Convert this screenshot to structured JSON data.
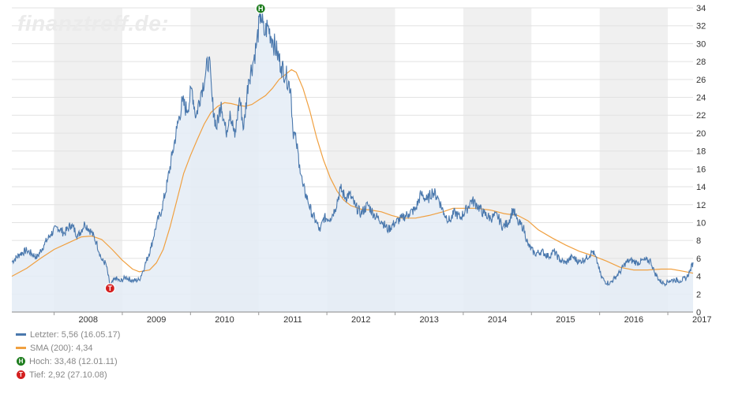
{
  "watermark": "finanztreff.de:",
  "colors": {
    "price": "#4a78ad",
    "sma": "#f0a040",
    "high": "#1e7d1e",
    "low": "#d42020",
    "band": "#f0f0f0",
    "fill": "#e4ecf6"
  },
  "legend": {
    "last": "Letzter: 5,56 (16.05.17)",
    "sma": "SMA (200): 4,34",
    "high": "Hoch: 33,48 (12.01.11)",
    "low": "Tief: 2,92 (27.10.08)"
  },
  "chart_data": {
    "type": "line",
    "x_range": [
      2007.38,
      2017.37
    ],
    "ylim": [
      0,
      34
    ],
    "y_ticks": [
      0,
      2,
      4,
      6,
      8,
      10,
      12,
      14,
      16,
      18,
      20,
      22,
      24,
      26,
      28,
      30,
      32,
      34
    ],
    "x_ticks": [
      "2008",
      "2009",
      "2010",
      "2011",
      "2012",
      "2013",
      "2014",
      "2015",
      "2016",
      "2017"
    ],
    "grid": true,
    "legend_position": "bottom-left",
    "markers": [
      {
        "label": "H",
        "x": 2011.03,
        "y": 33.48
      },
      {
        "label": "T",
        "x": 2008.82,
        "y": 2.92
      }
    ],
    "series": [
      {
        "values": [
          [
            2007.38,
            5.6
          ],
          [
            2007.5,
            6.5
          ],
          [
            2007.6,
            6.9
          ],
          [
            2007.75,
            6.1
          ],
          [
            2007.85,
            7.5
          ],
          [
            2007.95,
            8.7
          ],
          [
            2008.05,
            9.5
          ],
          [
            2008.15,
            8.8
          ],
          [
            2008.25,
            9.8
          ],
          [
            2008.35,
            8.5
          ],
          [
            2008.45,
            9.9
          ],
          [
            2008.55,
            8.9
          ],
          [
            2008.62,
            7.8
          ],
          [
            2008.7,
            5.8
          ],
          [
            2008.76,
            5.4
          ],
          [
            2008.82,
            2.92
          ],
          [
            2008.9,
            3.8
          ],
          [
            2008.97,
            3.4
          ],
          [
            2009.05,
            3.9
          ],
          [
            2009.15,
            3.5
          ],
          [
            2009.25,
            3.6
          ],
          [
            2009.33,
            5.2
          ],
          [
            2009.42,
            7.2
          ],
          [
            2009.5,
            9.8
          ],
          [
            2009.58,
            11.5
          ],
          [
            2009.66,
            14.5
          ],
          [
            2009.73,
            17.5
          ],
          [
            2009.8,
            20.5
          ],
          [
            2009.88,
            23.5
          ],
          [
            2009.95,
            22.5
          ],
          [
            2010.02,
            25.0
          ],
          [
            2010.08,
            21.8
          ],
          [
            2010.15,
            24.5
          ],
          [
            2010.22,
            26.5
          ],
          [
            2010.27,
            28.5
          ],
          [
            2010.32,
            23.5
          ],
          [
            2010.38,
            20.5
          ],
          [
            2010.45,
            23.5
          ],
          [
            2010.52,
            20.0
          ],
          [
            2010.58,
            22.5
          ],
          [
            2010.65,
            19.5
          ],
          [
            2010.72,
            24.0
          ],
          [
            2010.78,
            20.5
          ],
          [
            2010.85,
            26.0
          ],
          [
            2010.92,
            28.0
          ],
          [
            2010.97,
            30.0
          ],
          [
            2011.03,
            33.48
          ],
          [
            2011.08,
            31.0
          ],
          [
            2011.13,
            32.0
          ],
          [
            2011.2,
            30.5
          ],
          [
            2011.27,
            29.0
          ],
          [
            2011.33,
            27.5
          ],
          [
            2011.4,
            26.5
          ],
          [
            2011.47,
            25.0
          ],
          [
            2011.5,
            20.5
          ],
          [
            2011.55,
            19.0
          ],
          [
            2011.6,
            16.5
          ],
          [
            2011.65,
            14.0
          ],
          [
            2011.72,
            12.5
          ],
          [
            2011.78,
            11.0
          ],
          [
            2011.85,
            10.0
          ],
          [
            2011.9,
            9.0
          ],
          [
            2011.95,
            10.5
          ],
          [
            2012.05,
            10.5
          ],
          [
            2012.12,
            11.5
          ],
          [
            2012.2,
            13.8
          ],
          [
            2012.27,
            12.8
          ],
          [
            2012.33,
            13.2
          ],
          [
            2012.42,
            11.8
          ],
          [
            2012.5,
            11.0
          ],
          [
            2012.6,
            12.0
          ],
          [
            2012.7,
            10.8
          ],
          [
            2012.8,
            10.2
          ],
          [
            2012.9,
            9.2
          ],
          [
            2013.0,
            10.0
          ],
          [
            2013.1,
            10.5
          ],
          [
            2013.2,
            11.0
          ],
          [
            2013.3,
            11.5
          ],
          [
            2013.38,
            13.2
          ],
          [
            2013.47,
            12.5
          ],
          [
            2013.55,
            13.5
          ],
          [
            2013.63,
            12.8
          ],
          [
            2013.72,
            11.0
          ],
          [
            2013.8,
            10.2
          ],
          [
            2013.88,
            11.2
          ],
          [
            2013.95,
            10.5
          ],
          [
            2014.05,
            11.5
          ],
          [
            2014.12,
            12.5
          ],
          [
            2014.2,
            12.0
          ],
          [
            2014.3,
            11.0
          ],
          [
            2014.4,
            10.5
          ],
          [
            2014.5,
            10.8
          ],
          [
            2014.58,
            9.5
          ],
          [
            2014.66,
            10.0
          ],
          [
            2014.73,
            11.5
          ],
          [
            2014.8,
            10.0
          ],
          [
            2014.88,
            9.5
          ],
          [
            2014.95,
            7.5
          ],
          [
            2015.05,
            6.5
          ],
          [
            2015.15,
            6.8
          ],
          [
            2015.25,
            6.2
          ],
          [
            2015.33,
            6.8
          ],
          [
            2015.42,
            5.8
          ],
          [
            2015.5,
            5.5
          ],
          [
            2015.6,
            6.2
          ],
          [
            2015.7,
            5.6
          ],
          [
            2015.8,
            6.0
          ],
          [
            2015.9,
            6.8
          ],
          [
            2015.97,
            5.5
          ],
          [
            2016.02,
            4.0
          ],
          [
            2016.08,
            3.4
          ],
          [
            2016.15,
            3.2
          ],
          [
            2016.22,
            3.8
          ],
          [
            2016.3,
            4.5
          ],
          [
            2016.38,
            5.5
          ],
          [
            2016.45,
            5.8
          ],
          [
            2016.55,
            5.5
          ],
          [
            2016.65,
            5.8
          ],
          [
            2016.75,
            5.7
          ],
          [
            2016.8,
            4.5
          ],
          [
            2016.88,
            3.5
          ],
          [
            2016.95,
            3.2
          ],
          [
            2017.02,
            3.5
          ],
          [
            2017.1,
            3.6
          ],
          [
            2017.18,
            3.5
          ],
          [
            2017.27,
            3.8
          ],
          [
            2017.32,
            4.5
          ],
          [
            2017.37,
            5.56
          ]
        ]
      },
      {
        "values": [
          [
            2007.38,
            4.0
          ],
          [
            2007.6,
            4.9
          ],
          [
            2007.8,
            6.0
          ],
          [
            2008.0,
            7.0
          ],
          [
            2008.2,
            7.7
          ],
          [
            2008.4,
            8.4
          ],
          [
            2008.55,
            8.5
          ],
          [
            2008.7,
            8.1
          ],
          [
            2008.85,
            7.0
          ],
          [
            2009.0,
            5.8
          ],
          [
            2009.15,
            4.8
          ],
          [
            2009.25,
            4.5
          ],
          [
            2009.4,
            4.7
          ],
          [
            2009.5,
            5.5
          ],
          [
            2009.6,
            7.0
          ],
          [
            2009.7,
            9.5
          ],
          [
            2009.8,
            12.5
          ],
          [
            2009.9,
            15.5
          ],
          [
            2010.0,
            17.5
          ],
          [
            2010.1,
            19.3
          ],
          [
            2010.2,
            21.0
          ],
          [
            2010.3,
            22.3
          ],
          [
            2010.4,
            23.0
          ],
          [
            2010.5,
            23.4
          ],
          [
            2010.6,
            23.3
          ],
          [
            2010.7,
            23.1
          ],
          [
            2010.8,
            23.0
          ],
          [
            2010.9,
            23.2
          ],
          [
            2011.0,
            23.7
          ],
          [
            2011.1,
            24.2
          ],
          [
            2011.2,
            25.0
          ],
          [
            2011.3,
            26.0
          ],
          [
            2011.4,
            26.6
          ],
          [
            2011.48,
            27.1
          ],
          [
            2011.55,
            26.8
          ],
          [
            2011.65,
            25.0
          ],
          [
            2011.75,
            22.5
          ],
          [
            2011.85,
            19.5
          ],
          [
            2011.95,
            17.0
          ],
          [
            2012.05,
            15.0
          ],
          [
            2012.15,
            13.5
          ],
          [
            2012.25,
            12.5
          ],
          [
            2012.35,
            11.9
          ],
          [
            2012.5,
            11.5
          ],
          [
            2012.65,
            11.4
          ],
          [
            2012.8,
            11.2
          ],
          [
            2012.95,
            10.8
          ],
          [
            2013.1,
            10.5
          ],
          [
            2013.3,
            10.5
          ],
          [
            2013.5,
            10.8
          ],
          [
            2013.7,
            11.2
          ],
          [
            2013.85,
            11.6
          ],
          [
            2014.0,
            11.6
          ],
          [
            2014.2,
            11.6
          ],
          [
            2014.4,
            11.4
          ],
          [
            2014.6,
            11.0
          ],
          [
            2014.8,
            10.8
          ],
          [
            2014.95,
            10.2
          ],
          [
            2015.1,
            9.2
          ],
          [
            2015.3,
            8.3
          ],
          [
            2015.5,
            7.5
          ],
          [
            2015.7,
            6.8
          ],
          [
            2015.9,
            6.3
          ],
          [
            2016.1,
            5.7
          ],
          [
            2016.3,
            5.0
          ],
          [
            2016.5,
            4.7
          ],
          [
            2016.7,
            4.7
          ],
          [
            2016.9,
            4.8
          ],
          [
            2017.05,
            4.8
          ],
          [
            2017.2,
            4.6
          ],
          [
            2017.37,
            4.34
          ]
        ]
      }
    ]
  }
}
